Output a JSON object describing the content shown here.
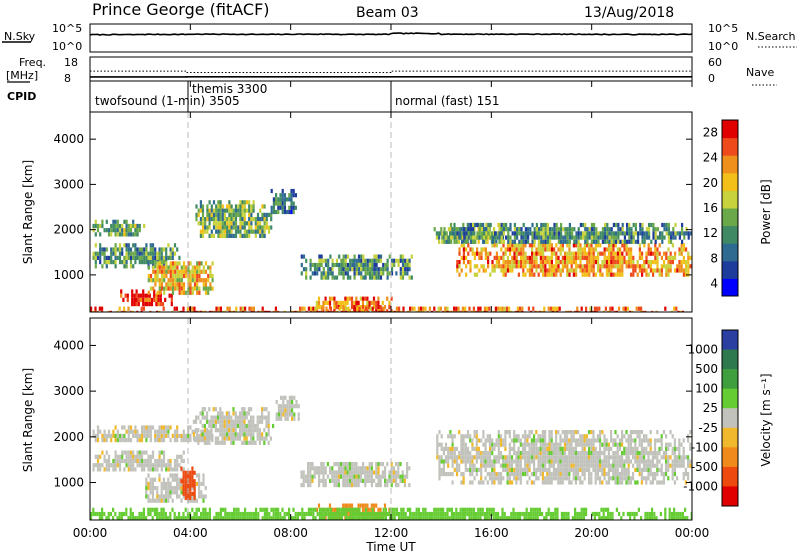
{
  "header": {
    "station": "Prince George (fitACF)",
    "beam": "Beam 03",
    "date": "13/Aug/2018"
  },
  "top_panels": {
    "nsky": {
      "label": "N.Sky",
      "ticks": [
        "10^5",
        "10^0"
      ],
      "right_ticks": [
        "10^5",
        "10^0"
      ],
      "right_label": "N.Search"
    },
    "freq": {
      "label_line1": "Freq.",
      "label_line2": "[MHz]",
      "ticks": [
        "18",
        "8"
      ],
      "right_ticks": [
        "60",
        "0"
      ],
      "right_label": "Nave"
    },
    "cpid": {
      "label": "CPID",
      "entries": [
        {
          "name": "twofsound (1-min) 3505",
          "start": "00:00"
        },
        {
          "name": "themis 3300",
          "start": "03:50"
        },
        {
          "name": "normal (fast) 151",
          "start": "12:00"
        }
      ]
    }
  },
  "axes": {
    "ylabel": "Slant Range [km]",
    "xlabel": "Time UT",
    "y_ticks": [
      "1000",
      "2000",
      "3000",
      "4000"
    ],
    "x_ticks": [
      "00:00",
      "04:00",
      "08:00",
      "12:00",
      "16:00",
      "20:00",
      "00:00"
    ]
  },
  "colorbars": {
    "power": {
      "label": "Power [dB]",
      "ticks": [
        "4",
        "8",
        "12",
        "16",
        "20",
        "24",
        "28"
      ],
      "colors": [
        "#0000ff",
        "#1e3c9c",
        "#2f6a91",
        "#3f8a64",
        "#6aa84a",
        "#c8d23c",
        "#f2c018",
        "#f0901c",
        "#ee4a1c",
        "#e00000"
      ]
    },
    "velocity": {
      "label": "Velocity [m s⁻¹]",
      "ticks": [
        "1000",
        "500",
        "100",
        "25",
        "-25",
        "-100",
        "-500",
        "-1000"
      ],
      "colors": [
        "#2a3fa0",
        "#2e7a4e",
        "#3f9f3f",
        "#66cc33",
        "#c2c2bc",
        "#f0b82c",
        "#f08a1c",
        "#ee4a10",
        "#e00000"
      ]
    }
  },
  "chart_data": [
    {
      "type": "line",
      "title": "N.Sky / N.Search",
      "x_range": [
        "00:00",
        "24:00"
      ],
      "series": [
        {
          "name": "N.Sky",
          "values": [
            7000,
            8000,
            9000,
            8000,
            9000,
            8000,
            14000,
            9000,
            9000,
            9000,
            8000,
            8000
          ]
        },
        {
          "name": "N.Search",
          "values": [
            8000,
            8000,
            8000,
            8000,
            8000,
            8000,
            8000,
            8000,
            8000,
            8000,
            8000,
            8000
          ]
        }
      ]
    },
    {
      "type": "line",
      "title": "Freq. / Nave",
      "x_range": [
        "00:00",
        "24:00"
      ],
      "series": [
        {
          "name": "Freq.",
          "x": [
            0,
            3.83,
            3.83,
            24
          ],
          "values": [
            10.2,
            10.2,
            10.3,
            10.3
          ]
        },
        {
          "name": "Nave",
          "x": [
            0,
            3.83,
            3.83,
            12,
            12,
            24
          ],
          "values": [
            38,
            38,
            32,
            32,
            38,
            38
          ]
        }
      ]
    },
    {
      "type": "heatmap",
      "title": "Power [dB]",
      "xlabel": "",
      "ylabel": "Slant Range [km]",
      "x_range": [
        0,
        24
      ],
      "y_range": [
        180,
        4600
      ],
      "regions": [
        {
          "t": [
            0.1,
            2.2
          ],
          "r": [
            1880,
            2220
          ],
          "value": 14
        },
        {
          "t": [
            0.1,
            3.6
          ],
          "r": [
            1200,
            1700
          ],
          "value": 12
        },
        {
          "t": [
            1.2,
            3.3
          ],
          "r": [
            350,
            680
          ],
          "value": 28
        },
        {
          "t": [
            2.3,
            4.9
          ],
          "r": [
            600,
            1300
          ],
          "value": 20
        },
        {
          "t": [
            4.2,
            7.2
          ],
          "r": [
            1850,
            2650
          ],
          "value": 14
        },
        {
          "t": [
            7.2,
            8.2
          ],
          "r": [
            2350,
            2900
          ],
          "value": 10
        },
        {
          "t": [
            8.4,
            12.8
          ],
          "r": [
            950,
            1450
          ],
          "value": 12
        },
        {
          "t": [
            9.0,
            12.0
          ],
          "r": [
            220,
            520
          ],
          "value": 24
        },
        {
          "t": [
            13.7,
            16.5
          ],
          "r": [
            1700,
            2150
          ],
          "value": 14
        },
        {
          "t": [
            14.6,
            24.0
          ],
          "r": [
            1000,
            1700
          ],
          "value": 22
        },
        {
          "t": [
            14.0,
            24.0
          ],
          "r": [
            1700,
            2150
          ],
          "value": 12
        },
        {
          "t": [
            0.0,
            24.0
          ],
          "r": [
            180,
            300
          ],
          "value": 24
        }
      ]
    },
    {
      "type": "heatmap",
      "title": "Velocity [m s⁻¹]",
      "xlabel": "Time UT",
      "ylabel": "Slant Range [km]",
      "x_range": [
        0,
        24
      ],
      "y_range": [
        180,
        4600
      ],
      "regions": [
        {
          "t": [
            0.1,
            4.9
          ],
          "r": [
            1900,
            2250
          ],
          "value": 0
        },
        {
          "t": [
            0.1,
            3.7
          ],
          "r": [
            1250,
            1700
          ],
          "value": 0
        },
        {
          "t": [
            2.2,
            4.6
          ],
          "r": [
            600,
            1200
          ],
          "value": 0
        },
        {
          "t": [
            3.6,
            4.2
          ],
          "r": [
            700,
            1350
          ],
          "value": -800
        },
        {
          "t": [
            4.1,
            7.3
          ],
          "r": [
            1850,
            2650
          ],
          "value": 0
        },
        {
          "t": [
            7.4,
            8.3
          ],
          "r": [
            2400,
            2900
          ],
          "value": 0
        },
        {
          "t": [
            8.3,
            12.7
          ],
          "r": [
            950,
            1450
          ],
          "value": 0
        },
        {
          "t": [
            9.0,
            12.0
          ],
          "r": [
            220,
            540
          ],
          "value": -200
        },
        {
          "t": [
            13.8,
            24.0
          ],
          "r": [
            1000,
            2150
          ],
          "value": 0
        },
        {
          "t": [
            0.0,
            24.0
          ],
          "r": [
            180,
            450
          ],
          "value": 60
        }
      ]
    }
  ]
}
